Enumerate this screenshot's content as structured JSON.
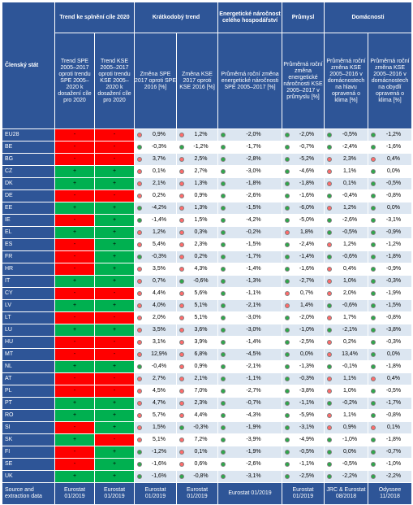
{
  "header": {
    "country_col": "Členský stát",
    "group_trend": "Trend ke splnění cíle 2020",
    "group_short": "Krátkodobý trend",
    "group_energy": "Energetické náročnost celého hospodářství",
    "group_industry": "Průmysl",
    "group_households": "Domácnosti",
    "sub_trend_spe": "Trend SPE 2005–2017 oproti trendu SPE 2005–2020 k dosažení cíle pro 2020",
    "sub_trend_kse": "Trend KSE 2005–2017 oproti trendu KSE 2005–2020 k dosažení cíle pro 2020",
    "sub_short_spe": "Změna SPE 2017 oproti SPE 2016 [%]",
    "sub_short_kse": "Změna KSE 2017 oproti KSE 2016 [%]",
    "sub_energy": "Průměrná roční změna energetické náročnosti SPE 2005–2017 [%]",
    "sub_industry": "Průměrná roční změna energetické náročnosti KSE 2005–2017 v průmyslu [%]",
    "sub_house1": "Průměrná roční změna KSE 2005–2016 v domácnostech na hlavu opravená o klima [%]",
    "sub_house2": "Průměrná roční změna KSE 2005–2016 v domácnostech na obydlí opravená o klima [%]"
  },
  "rows": [
    {
      "c": "EU28",
      "t1": "-",
      "t1c": "red",
      "t2": "-",
      "t2c": "red",
      "v": [
        "0,9%",
        "1,2%",
        "-2,0%",
        "-2,0%",
        "-0,5%",
        "-1,2%"
      ],
      "d": [
        "r",
        "r",
        "g",
        "g",
        "g",
        "g"
      ]
    },
    {
      "c": "BE",
      "t1": "-",
      "t1c": "red",
      "t2": "-",
      "t2c": "red",
      "v": [
        "-0,3%",
        "-1,2%",
        "-1,7%",
        "-0,7%",
        "-2,4%",
        "-1,6%"
      ],
      "d": [
        "g",
        "g",
        "g",
        "g",
        "g",
        "g"
      ]
    },
    {
      "c": "BG",
      "t1": "-",
      "t1c": "red",
      "t2": "-",
      "t2c": "red",
      "v": [
        "3,7%",
        "2,5%",
        "-2,8%",
        "-5,2%",
        "2,3%",
        "0,4%"
      ],
      "d": [
        "r",
        "r",
        "g",
        "g",
        "r",
        "r"
      ]
    },
    {
      "c": "CZ",
      "t1": "+",
      "t1c": "green",
      "t2": "+",
      "t2c": "green",
      "v": [
        "0,1%",
        "2,7%",
        "-3,0%",
        "-4,6%",
        "1,1%",
        "0,0%"
      ],
      "d": [
        "r",
        "r",
        "g",
        "g",
        "r",
        "g"
      ]
    },
    {
      "c": "DK",
      "t1": "+",
      "t1c": "green",
      "t2": "+",
      "t2c": "green",
      "v": [
        "2,1%",
        "1,3%",
        "-1,8%",
        "-1,8%",
        "0,1%",
        "-0,5%"
      ],
      "d": [
        "r",
        "r",
        "g",
        "g",
        "r",
        "g"
      ]
    },
    {
      "c": "DE",
      "t1": "-",
      "t1c": "red",
      "t2": "-",
      "t2c": "red",
      "v": [
        "0,2%",
        "0,9%",
        "-2,6%",
        "-1,6%",
        "-0,4%",
        "-0,8%"
      ],
      "d": [
        "r",
        "r",
        "g",
        "g",
        "g",
        "g"
      ]
    },
    {
      "c": "EE",
      "t1": "+",
      "t1c": "green",
      "t2": "+",
      "t2c": "green",
      "v": [
        "-4,2%",
        "1,3%",
        "-1,5%",
        "-6,0%",
        "1,2%",
        "0,0%"
      ],
      "d": [
        "g",
        "r",
        "g",
        "g",
        "r",
        "g"
      ]
    },
    {
      "c": "IE",
      "t1": "-",
      "t1c": "red",
      "t2": "+",
      "t2c": "green",
      "v": [
        "-1,4%",
        "1,5%",
        "-4,2%",
        "-5,0%",
        "-2,6%",
        "-3,1%"
      ],
      "d": [
        "g",
        "r",
        "g",
        "g",
        "g",
        "g"
      ]
    },
    {
      "c": "EL",
      "t1": "+",
      "t1c": "green",
      "t2": "+",
      "t2c": "green",
      "v": [
        "1,2%",
        "0,3%",
        "-0,2%",
        "1,8%",
        "-0,5%",
        "-0,9%"
      ],
      "d": [
        "r",
        "r",
        "g",
        "r",
        "g",
        "g"
      ]
    },
    {
      "c": "ES",
      "t1": "-",
      "t1c": "red",
      "t2": "+",
      "t2c": "green",
      "v": [
        "5,4%",
        "2,3%",
        "-1,5%",
        "-2,4%",
        "1,2%",
        "-1,2%"
      ],
      "d": [
        "r",
        "r",
        "g",
        "g",
        "r",
        "g"
      ]
    },
    {
      "c": "FR",
      "t1": "-",
      "t1c": "red",
      "t2": "+",
      "t2c": "green",
      "v": [
        "-0,3%",
        "0,2%",
        "-1,7%",
        "-1,4%",
        "-0,6%",
        "-1,8%"
      ],
      "d": [
        "g",
        "r",
        "g",
        "g",
        "g",
        "g"
      ]
    },
    {
      "c": "HR",
      "t1": "-",
      "t1c": "red",
      "t2": "+",
      "t2c": "green",
      "v": [
        "3,5%",
        "4,3%",
        "-1,4%",
        "-1,6%",
        "0,4%",
        "-0,9%"
      ],
      "d": [
        "r",
        "r",
        "g",
        "g",
        "r",
        "g"
      ]
    },
    {
      "c": "IT",
      "t1": "+",
      "t1c": "green",
      "t2": "+",
      "t2c": "green",
      "v": [
        "0,7%",
        "-0,6%",
        "-1,3%",
        "-2,7%",
        "1,0%",
        "-0,3%"
      ],
      "d": [
        "r",
        "g",
        "g",
        "g",
        "r",
        "g"
      ]
    },
    {
      "c": "CY",
      "t1": "-",
      "t1c": "red",
      "t2": "-",
      "t2c": "red",
      "v": [
        "4,4%",
        "5,6%",
        "-1,1%",
        "0,7%",
        "2,0%",
        "-1,9%"
      ],
      "d": [
        "r",
        "r",
        "g",
        "r",
        "r",
        "g"
      ]
    },
    {
      "c": "LV",
      "t1": "+",
      "t1c": "green",
      "t2": "+",
      "t2c": "green",
      "v": [
        "4,0%",
        "5,1%",
        "-2,1%",
        "1,4%",
        "-0,6%",
        "-1,5%"
      ],
      "d": [
        "r",
        "r",
        "g",
        "r",
        "g",
        "g"
      ]
    },
    {
      "c": "LT",
      "t1": "-",
      "t1c": "red",
      "t2": "-",
      "t2c": "red",
      "v": [
        "2,0%",
        "5,1%",
        "-3,0%",
        "-2,0%",
        "1,7%",
        "-0,8%"
      ],
      "d": [
        "r",
        "r",
        "g",
        "g",
        "r",
        "g"
      ]
    },
    {
      "c": "LU",
      "t1": "+",
      "t1c": "green",
      "t2": "+",
      "t2c": "green",
      "v": [
        "3,5%",
        "3,6%",
        "-3,0%",
        "-1,0%",
        "-2,1%",
        "-3,8%"
      ],
      "d": [
        "r",
        "r",
        "g",
        "g",
        "g",
        "g"
      ]
    },
    {
      "c": "HU",
      "t1": "-",
      "t1c": "red",
      "t2": "-",
      "t2c": "red",
      "v": [
        "3,1%",
        "3,9%",
        "-1,4%",
        "-2,5%",
        "0,2%",
        "-0,3%"
      ],
      "d": [
        "r",
        "r",
        "g",
        "g",
        "r",
        "g"
      ]
    },
    {
      "c": "MT",
      "t1": "-",
      "t1c": "red",
      "t2": "-",
      "t2c": "red",
      "v": [
        "12,9%",
        "6,8%",
        "-4,5%",
        "0,0%",
        "13,4%",
        "0,0%"
      ],
      "d": [
        "r",
        "r",
        "g",
        "g",
        "r",
        "g"
      ]
    },
    {
      "c": "NL",
      "t1": "+",
      "t1c": "green",
      "t2": "+",
      "t2c": "green",
      "v": [
        "-0,4%",
        "0,9%",
        "-2,1%",
        "-1,3%",
        "-0,1%",
        "-1,8%"
      ],
      "d": [
        "g",
        "r",
        "g",
        "g",
        "g",
        "g"
      ]
    },
    {
      "c": "AT",
      "t1": "-",
      "t1c": "red",
      "t2": "-",
      "t2c": "red",
      "v": [
        "2,7%",
        "2,1%",
        "-1,1%",
        "-0,3%",
        "1,1%",
        "0,4%"
      ],
      "d": [
        "r",
        "r",
        "g",
        "g",
        "r",
        "r"
      ]
    },
    {
      "c": "PL",
      "t1": "-",
      "t1c": "red",
      "t2": "-",
      "t2c": "red",
      "v": [
        "4,5%",
        "7,0%",
        "-2,7%",
        "-3,8%",
        "1,0%",
        "-0,5%"
      ],
      "d": [
        "r",
        "r",
        "g",
        "g",
        "r",
        "g"
      ]
    },
    {
      "c": "PT",
      "t1": "+",
      "t1c": "green",
      "t2": "+",
      "t2c": "green",
      "v": [
        "4,7%",
        "2,3%",
        "-0,7%",
        "-1,1%",
        "-0,2%",
        "-1,7%"
      ],
      "d": [
        "r",
        "r",
        "g",
        "g",
        "g",
        "g"
      ]
    },
    {
      "c": "RO",
      "t1": "+",
      "t1c": "green",
      "t2": "+",
      "t2c": "green",
      "v": [
        "5,7%",
        "4,4%",
        "-4,3%",
        "-5,9%",
        "1,1%",
        "-0,8%"
      ],
      "d": [
        "r",
        "r",
        "g",
        "g",
        "r",
        "g"
      ]
    },
    {
      "c": "SI",
      "t1": "-",
      "t1c": "red",
      "t2": "+",
      "t2c": "green",
      "v": [
        "1,5%",
        "-0,3%",
        "-1,9%",
        "-3,1%",
        "0,9%",
        "0,1%"
      ],
      "d": [
        "r",
        "g",
        "g",
        "g",
        "r",
        "r"
      ]
    },
    {
      "c": "SK",
      "t1": "+",
      "t1c": "green",
      "t2": "-",
      "t2c": "red",
      "v": [
        "5,1%",
        "7,2%",
        "-3,9%",
        "-4,9%",
        "-1,0%",
        "-1,8%"
      ],
      "d": [
        "r",
        "r",
        "g",
        "g",
        "g",
        "g"
      ]
    },
    {
      "c": "FI",
      "t1": "-",
      "t1c": "red",
      "t2": "+",
      "t2c": "green",
      "v": [
        "-1,2%",
        "0,1%",
        "-1,9%",
        "-0,5%",
        "0,0%",
        "-0,7%"
      ],
      "d": [
        "g",
        "r",
        "g",
        "g",
        "g",
        "g"
      ]
    },
    {
      "c": "SE",
      "t1": "-",
      "t1c": "red",
      "t2": "+",
      "t2c": "green",
      "v": [
        "-1,6%",
        "0,6%",
        "-2,6%",
        "-1,1%",
        "-0,5%",
        "-1,0%"
      ],
      "d": [
        "g",
        "r",
        "g",
        "g",
        "g",
        "g"
      ]
    },
    {
      "c": "UK",
      "t1": "+",
      "t1c": "green",
      "t2": "+",
      "t2c": "green",
      "v": [
        "-1,6%",
        "-0,8%",
        "-3,1%",
        "-2,5%",
        "-2,2%",
        "-2,2%"
      ],
      "d": [
        "g",
        "g",
        "g",
        "g",
        "g",
        "g"
      ]
    }
  ],
  "footer": {
    "label": "Source and extraction data",
    "sources": [
      "Eurostat 01/2019",
      "Eurostat 01/2019",
      "Eurostat 01/2019",
      "Eurostat 01/2019",
      "Eurostat 01/2019",
      "Eurostat 01/2019",
      "JRC & Eurostat 08/2018",
      "Odyssee 11/2018"
    ]
  },
  "colors": {
    "header_bg": "#2e5597",
    "red": "#ff0000",
    "green": "#00b050",
    "dot_green": "#2ea84b",
    "dot_red": "#ff6b6b",
    "stripe": "#dce6f1"
  }
}
